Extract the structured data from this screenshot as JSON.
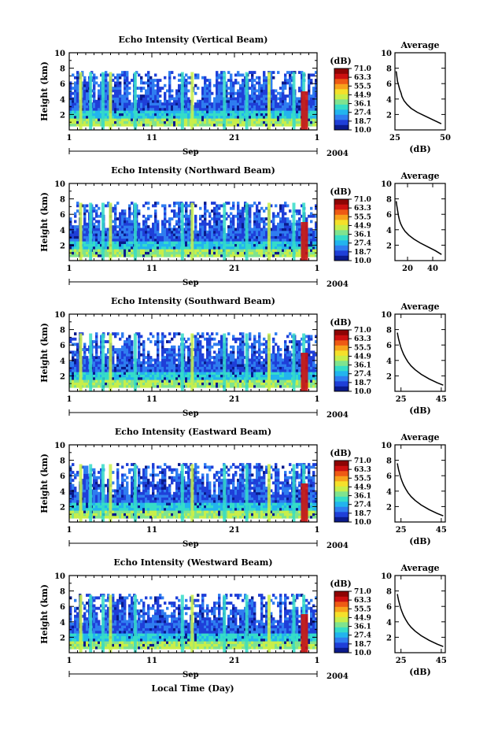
{
  "figure": {
    "xlabel": "Local Time (Day)",
    "month": "Sep",
    "year": "2004"
  },
  "colorbar": {
    "unit": "(dB)",
    "ticks": [
      "71.0",
      "63.3",
      "55.5",
      "44.9",
      "36.1",
      "27.4",
      "18.7",
      "10.0"
    ],
    "colors": [
      "#0a1a8c",
      "#1f3fd8",
      "#2f7df0",
      "#22b4ee",
      "#35dcc8",
      "#7fe38f",
      "#c8ee4a",
      "#f5e02a",
      "#f7a21c",
      "#ee5a14",
      "#cc1010",
      "#8e0404"
    ]
  },
  "chart_data": [
    {
      "type": "heatmap",
      "title": "Echo Intensity (Vertical Beam)",
      "ylabel": "Height (km)",
      "xticks": [
        "1",
        "11",
        "21",
        "1"
      ],
      "yticks": [
        "2",
        "4",
        "6",
        "8",
        "10"
      ],
      "ylim": [
        0,
        10
      ],
      "clim": [
        10.0,
        71.0
      ],
      "avg": {
        "title": "Average",
        "xlabel": "(dB)",
        "xticks": [
          "25",
          "50"
        ],
        "xlim": [
          25,
          50
        ],
        "yticks": [
          "2",
          "4",
          "6",
          "8",
          "10"
        ],
        "ylim": [
          0,
          10
        ],
        "profile": [
          [
            48,
            0.8
          ],
          [
            44,
            1.3
          ],
          [
            40,
            1.8
          ],
          [
            36,
            2.3
          ],
          [
            33,
            2.8
          ],
          [
            31,
            3.3
          ],
          [
            29.5,
            3.8
          ],
          [
            28.5,
            4.3
          ],
          [
            28,
            4.8
          ],
          [
            27.3,
            5.3
          ],
          [
            26.8,
            5.8
          ],
          [
            26.3,
            6.3
          ],
          [
            26,
            6.8
          ],
          [
            25.8,
            7.3
          ],
          [
            25.6,
            7.6
          ]
        ]
      }
    },
    {
      "type": "heatmap",
      "title": "Echo Intensity (Northward Beam)",
      "ylabel": "Height (km)",
      "xticks": [
        "1",
        "11",
        "21",
        "1"
      ],
      "yticks": [
        "2",
        "4",
        "6",
        "8",
        "10"
      ],
      "ylim": [
        0,
        10
      ],
      "clim": [
        10.0,
        71.0
      ],
      "avg": {
        "title": "Average",
        "xlabel": "",
        "xticks": [
          "20",
          "40"
        ],
        "xlim": [
          10,
          50
        ],
        "yticks": [
          "2",
          "4",
          "6",
          "8",
          "10"
        ],
        "ylim": [
          0,
          10
        ],
        "profile": [
          [
            47,
            0.8
          ],
          [
            42,
            1.3
          ],
          [
            36,
            1.8
          ],
          [
            30,
            2.3
          ],
          [
            25,
            2.8
          ],
          [
            21,
            3.3
          ],
          [
            18,
            3.8
          ],
          [
            16,
            4.3
          ],
          [
            14.5,
            4.8
          ],
          [
            13.5,
            5.3
          ],
          [
            12.8,
            5.8
          ],
          [
            12.3,
            6.3
          ],
          [
            11.8,
            6.8
          ],
          [
            11.3,
            7.3
          ],
          [
            11,
            7.7
          ]
        ]
      }
    },
    {
      "type": "heatmap",
      "title": "Echo Intensity (Southward Beam)",
      "ylabel": "Height (km)",
      "xticks": [
        "1",
        "11",
        "21",
        "1"
      ],
      "yticks": [
        "2",
        "4",
        "6",
        "8",
        "10"
      ],
      "ylim": [
        0,
        10
      ],
      "clim": [
        10.0,
        71.0
      ],
      "avg": {
        "title": "Average",
        "xlabel": "(dB)",
        "xticks": [
          "25",
          "45"
        ],
        "xlim": [
          22,
          47
        ],
        "yticks": [
          "2",
          "4",
          "6",
          "8",
          "10"
        ],
        "ylim": [
          0,
          10
        ],
        "profile": [
          [
            46,
            0.8
          ],
          [
            43,
            1.1
          ],
          [
            39,
            1.6
          ],
          [
            35,
            2.2
          ],
          [
            32,
            2.8
          ],
          [
            30,
            3.3
          ],
          [
            28.5,
            3.8
          ],
          [
            27.3,
            4.3
          ],
          [
            26.3,
            4.8
          ],
          [
            25.5,
            5.3
          ],
          [
            24.8,
            5.8
          ],
          [
            24.3,
            6.3
          ],
          [
            23.8,
            6.8
          ],
          [
            23.4,
            7.3
          ],
          [
            23.2,
            7.6
          ]
        ]
      }
    },
    {
      "type": "heatmap",
      "title": "Echo Intensity (Eastward Beam)",
      "ylabel": "Height (km)",
      "xticks": [
        "1",
        "11",
        "21",
        "1"
      ],
      "yticks": [
        "2",
        "4",
        "6",
        "8",
        "10"
      ],
      "ylim": [
        0,
        10
      ],
      "clim": [
        10.0,
        71.0
      ],
      "avg": {
        "title": "Average",
        "xlabel": "(dB)",
        "xticks": [
          "25",
          "45"
        ],
        "xlim": [
          22,
          47
        ],
        "yticks": [
          "2",
          "4",
          "6",
          "8",
          "10"
        ],
        "ylim": [
          0,
          10
        ],
        "profile": [
          [
            46,
            0.8
          ],
          [
            43,
            1.1
          ],
          [
            39,
            1.6
          ],
          [
            35,
            2.2
          ],
          [
            32,
            2.8
          ],
          [
            30,
            3.3
          ],
          [
            28.5,
            3.8
          ],
          [
            27.3,
            4.3
          ],
          [
            26.3,
            4.8
          ],
          [
            25.5,
            5.3
          ],
          [
            24.8,
            5.8
          ],
          [
            24.3,
            6.3
          ],
          [
            23.8,
            6.8
          ],
          [
            23.4,
            7.3
          ],
          [
            23.2,
            7.6
          ]
        ]
      }
    },
    {
      "type": "heatmap",
      "title": "Echo Intensity (Westward Beam)",
      "ylabel": "Height (km)",
      "xticks": [
        "1",
        "11",
        "21",
        "1"
      ],
      "yticks": [
        "2",
        "4",
        "6",
        "8",
        "10"
      ],
      "ylim": [
        0,
        10
      ],
      "clim": [
        10.0,
        71.0
      ],
      "avg": {
        "title": "Average",
        "xlabel": "(dB)",
        "xticks": [
          "25",
          "45"
        ],
        "xlim": [
          22,
          47
        ],
        "yticks": [
          "2",
          "4",
          "6",
          "8",
          "10"
        ],
        "ylim": [
          0,
          10
        ],
        "profile": [
          [
            46,
            0.8
          ],
          [
            43,
            1.1
          ],
          [
            39,
            1.6
          ],
          [
            35,
            2.2
          ],
          [
            32,
            2.8
          ],
          [
            30,
            3.3
          ],
          [
            28.5,
            3.8
          ],
          [
            27.3,
            4.3
          ],
          [
            26.3,
            4.8
          ],
          [
            25.5,
            5.3
          ],
          [
            24.8,
            5.8
          ],
          [
            24.3,
            6.3
          ],
          [
            23.8,
            6.8
          ],
          [
            23.4,
            7.3
          ],
          [
            23.2,
            7.6
          ]
        ]
      }
    }
  ]
}
